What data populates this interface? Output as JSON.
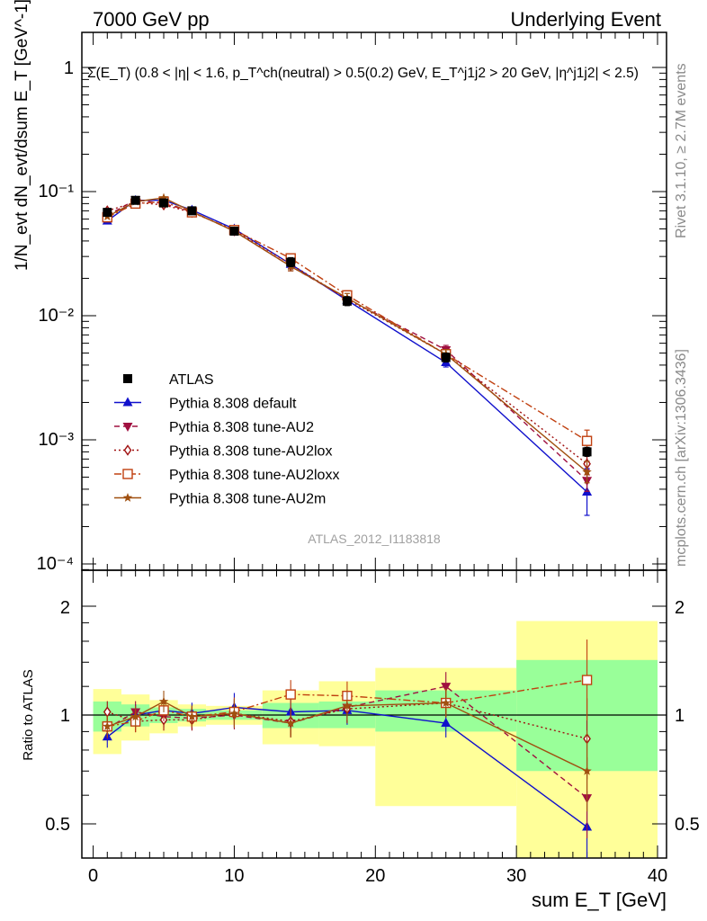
{
  "header": {
    "title_left": "7000 GeV pp",
    "title_right": "Underlying Event"
  },
  "annotations": {
    "selection": "Σ(E_T) (0.8 < |η| < 1.6, p_T^ch(neutral) > 0.5(0.2) GeV, E_T^j1j2 > 20 GeV, |η^j1j2| < 2.5)",
    "rivet": "Rivet 3.1.10, ≥ 2.7M events",
    "mcplots": "mcplots.cern.ch [arXiv:1306.3436]",
    "analysis": "ATLAS_2012_I1183818"
  },
  "axes": {
    "y_main_label": "1/N_evt dN_evt/dsum E_T [GeV^-1]",
    "y_ratio_label": "Ratio to ATLAS",
    "x_label": "sum E_T [GeV]",
    "x_ticks": [
      "0",
      "10",
      "20",
      "30",
      "40"
    ],
    "y_main_ticks": [
      "1",
      "10⁻¹",
      "10⁻²",
      "10⁻³",
      "10⁻⁴"
    ],
    "y_ratio_ticks": [
      "2",
      "1",
      "0.5"
    ]
  },
  "colors": {
    "atlas": "#000000",
    "default": "#1010cc",
    "au2": "#a01040",
    "au2lox": "#a01010",
    "au2loxx": "#c04010",
    "au2m": "#a05010",
    "band_green": "#99ff99",
    "band_yellow": "#ffff99"
  },
  "chart_data": [
    {
      "type": "scatter",
      "panel": "main",
      "title": "",
      "xlabel": "sum E_T [GeV]",
      "ylabel": "1/N_evt dN_evt/dsum E_T [GeV^-1]",
      "xlim": [
        -1,
        41
      ],
      "ylim": [
        0.0001,
        2
      ],
      "yscale": "log",
      "legend_position": "lower-left",
      "x": [
        1,
        3,
        5,
        7,
        10,
        14,
        18,
        25,
        35
      ],
      "series": [
        {
          "name": "ATLAS",
          "key": "atlas",
          "marker": "square",
          "values": [
            0.068,
            0.085,
            0.081,
            0.07,
            0.048,
            0.027,
            0.0131,
            0.0046,
            0.0008
          ]
        },
        {
          "name": "Pythia 8.308 default",
          "key": "default",
          "marker": "triangle-up",
          "line": "solid",
          "values": [
            0.058,
            0.085,
            0.085,
            0.071,
            0.05,
            0.026,
            0.0133,
            0.0042,
            0.00038
          ]
        },
        {
          "name": "Pythia 8.308 tune-AU2",
          "key": "au2",
          "marker": "triangle-down",
          "line": "dashed",
          "values": [
            0.064,
            0.086,
            0.08,
            0.069,
            0.048,
            0.025,
            0.0137,
            0.0053,
            0.00047
          ]
        },
        {
          "name": "Pythia 8.308 tune-AU2lox",
          "key": "au2lox",
          "marker": "diamond-open",
          "line": "dotted",
          "values": [
            0.07,
            0.082,
            0.078,
            0.068,
            0.049,
            0.026,
            0.0136,
            0.0049,
            0.00064
          ]
        },
        {
          "name": "Pythia 8.308 tune-AU2loxx",
          "key": "au2loxx",
          "marker": "square-open",
          "line": "dashdot",
          "values": [
            0.062,
            0.08,
            0.083,
            0.068,
            0.049,
            0.029,
            0.0146,
            0.0049,
            0.00098
          ]
        },
        {
          "name": "Pythia 8.308 tune-AU2m",
          "key": "au2m",
          "marker": "star",
          "line": "solid",
          "values": [
            0.063,
            0.083,
            0.089,
            0.069,
            0.048,
            0.025,
            0.0139,
            0.0049,
            0.00055
          ]
        }
      ]
    },
    {
      "type": "line",
      "panel": "ratio",
      "title": "",
      "xlabel": "sum E_T [GeV]",
      "ylabel": "Ratio to ATLAS",
      "xlim": [
        -1,
        41
      ],
      "ylim": [
        0.4,
        2.4
      ],
      "yscale": "log",
      "x": [
        1,
        3,
        5,
        7,
        10,
        14,
        18,
        25,
        35
      ],
      "bands": {
        "x_edges": [
          0,
          2,
          4,
          6,
          8,
          12,
          16,
          20,
          30,
          40
        ],
        "green_low": [
          0.9,
          0.93,
          0.95,
          0.96,
          0.97,
          0.92,
          0.92,
          0.9,
          0.7
        ],
        "green_high": [
          1.09,
          1.07,
          1.05,
          1.04,
          1.03,
          1.08,
          1.09,
          1.17,
          1.42
        ],
        "yellow_low": [
          0.78,
          0.85,
          0.89,
          0.93,
          0.94,
          0.83,
          0.82,
          0.56,
          0.35
        ],
        "yellow_high": [
          1.18,
          1.14,
          1.1,
          1.07,
          1.06,
          1.17,
          1.24,
          1.35,
          1.82
        ]
      },
      "series": [
        {
          "name": "Pythia 8.308 default",
          "key": "default",
          "marker": "triangle-up",
          "line": "solid",
          "values": [
            0.87,
            1.0,
            1.03,
            1.01,
            1.05,
            1.02,
            1.03,
            0.95,
            0.49
          ]
        },
        {
          "name": "Pythia 8.308 tune-AU2",
          "key": "au2",
          "marker": "triangle-down",
          "line": "dashed",
          "values": [
            0.92,
            1.02,
            0.99,
            0.98,
            1.0,
            0.95,
            1.05,
            1.2,
            0.59
          ]
        },
        {
          "name": "Pythia 8.308 tune-AU2lox",
          "key": "au2lox",
          "marker": "diamond-open",
          "line": "dotted",
          "values": [
            1.02,
            0.96,
            0.97,
            0.97,
            1.01,
            0.96,
            1.04,
            1.08,
            0.86
          ]
        },
        {
          "name": "Pythia 8.308 tune-AU2loxx",
          "key": "au2loxx",
          "marker": "square-open",
          "line": "dashdot",
          "values": [
            0.93,
            0.96,
            1.03,
            0.99,
            1.02,
            1.14,
            1.13,
            1.08,
            1.25
          ]
        },
        {
          "name": "Pythia 8.308 tune-AU2m",
          "key": "au2m",
          "marker": "star",
          "line": "solid",
          "values": [
            0.93,
            0.99,
            1.09,
            0.99,
            1.01,
            0.95,
            1.06,
            1.08,
            0.7
          ]
        }
      ]
    }
  ]
}
